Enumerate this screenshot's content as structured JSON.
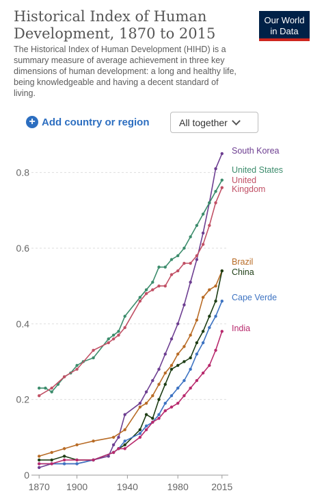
{
  "header": {
    "title": "Historical Index of Human Development, 1870 to 2015",
    "subtitle": "The Historical Index of Human Development (HIHD) is a summary measure of average achievement in three key dimensions of human development: a long and healthy life, being knowledgeable and having a decent standard of living.",
    "logo_line1": "Our World",
    "logo_line2": "in Data"
  },
  "controls": {
    "add_label": "Add country or region",
    "dropdown_value": "All together"
  },
  "colors": {
    "brand_navy": "#002147",
    "brand_red": "#ce261e",
    "accent_blue": "#2c6ec0"
  },
  "chart_data": {
    "type": "line",
    "title": "Historical Index of Human Development, 1870 to 2015",
    "xlabel": "",
    "ylabel": "",
    "xlim": [
      1865,
      2020
    ],
    "ylim": [
      0,
      0.87
    ],
    "x_ticks": [
      1870,
      1900,
      1940,
      1980,
      2015
    ],
    "y_ticks": [
      0,
      0.2,
      0.4,
      0.6,
      0.8
    ],
    "y_tick_labels": [
      "0",
      "0.2",
      "0.4",
      "0.6",
      "0.8"
    ],
    "grid": true,
    "legend": "inline-right",
    "series": [
      {
        "name": "South Korea",
        "color": "#6d3e91",
        "x": [
          1870,
          1880,
          1890,
          1900,
          1913,
          1925,
          1929,
          1933,
          1938,
          1950,
          1955,
          1960,
          1965,
          1970,
          1975,
          1980,
          1985,
          1990,
          1995,
          2000,
          2005,
          2010,
          2015
        ],
        "y": [
          0.02,
          0.03,
          0.03,
          0.03,
          0.04,
          0.05,
          0.08,
          0.1,
          0.16,
          0.19,
          0.22,
          0.25,
          0.28,
          0.32,
          0.36,
          0.4,
          0.45,
          0.51,
          0.57,
          0.64,
          0.72,
          0.81,
          0.85
        ]
      },
      {
        "name": "United States",
        "color": "#3c8c6c",
        "x": [
          1870,
          1875,
          1880,
          1885,
          1890,
          1895,
          1900,
          1905,
          1913,
          1925,
          1929,
          1933,
          1938,
          1950,
          1955,
          1960,
          1965,
          1970,
          1975,
          1980,
          1985,
          1990,
          1995,
          2000,
          2005,
          2010,
          2015
        ],
        "y": [
          0.23,
          0.23,
          0.22,
          0.24,
          0.26,
          0.27,
          0.29,
          0.3,
          0.31,
          0.36,
          0.37,
          0.38,
          0.42,
          0.47,
          0.49,
          0.51,
          0.55,
          0.55,
          0.57,
          0.58,
          0.6,
          0.63,
          0.66,
          0.69,
          0.72,
          0.75,
          0.78
        ]
      },
      {
        "name": "United Kingdom",
        "color": "#c15065",
        "x": [
          1870,
          1880,
          1890,
          1900,
          1913,
          1925,
          1929,
          1933,
          1938,
          1950,
          1955,
          1960,
          1965,
          1970,
          1975,
          1980,
          1985,
          1990,
          1995,
          2000,
          2005,
          2010,
          2015
        ],
        "y": [
          0.21,
          0.23,
          0.26,
          0.28,
          0.33,
          0.35,
          0.36,
          0.37,
          0.39,
          0.46,
          0.48,
          0.49,
          0.5,
          0.5,
          0.53,
          0.54,
          0.56,
          0.56,
          0.58,
          0.61,
          0.66,
          0.72,
          0.76
        ]
      },
      {
        "name": "Brazil",
        "color": "#b86b25",
        "x": [
          1870,
          1880,
          1890,
          1900,
          1913,
          1929,
          1938,
          1950,
          1955,
          1960,
          1965,
          1970,
          1975,
          1980,
          1985,
          1990,
          1995,
          2000,
          2005,
          2010,
          2015
        ],
        "y": [
          0.05,
          0.06,
          0.07,
          0.08,
          0.09,
          0.1,
          0.12,
          0.18,
          0.19,
          0.21,
          0.24,
          0.27,
          0.29,
          0.32,
          0.34,
          0.37,
          0.41,
          0.47,
          0.49,
          0.5,
          0.54
        ]
      },
      {
        "name": "China",
        "color": "#1d3d14",
        "x": [
          1870,
          1880,
          1890,
          1900,
          1913,
          1929,
          1933,
          1938,
          1950,
          1955,
          1960,
          1965,
          1970,
          1975,
          1980,
          1985,
          1990,
          1995,
          2000,
          2005,
          2010,
          2015
        ],
        "y": [
          0.04,
          0.04,
          0.05,
          0.04,
          0.04,
          0.06,
          0.07,
          0.08,
          0.12,
          0.16,
          0.15,
          0.2,
          0.24,
          0.28,
          0.29,
          0.3,
          0.31,
          0.35,
          0.38,
          0.42,
          0.46,
          0.54
        ]
      },
      {
        "name": "Cape Verde",
        "color": "#3d73c2",
        "x": [
          1870,
          1880,
          1890,
          1900,
          1913,
          1929,
          1933,
          1938,
          1950,
          1955,
          1960,
          1965,
          1970,
          1975,
          1980,
          1985,
          1990,
          1995,
          2000,
          2005,
          2010,
          2015
        ],
        "y": [
          0.03,
          0.03,
          0.03,
          0.03,
          0.04,
          0.06,
          0.07,
          0.09,
          0.11,
          0.13,
          0.14,
          0.16,
          0.19,
          0.21,
          0.23,
          0.25,
          0.28,
          0.32,
          0.35,
          0.39,
          0.42,
          0.46
        ]
      },
      {
        "name": "India",
        "color": "#b82a6d",
        "x": [
          1870,
          1880,
          1890,
          1900,
          1913,
          1929,
          1933,
          1938,
          1950,
          1955,
          1960,
          1965,
          1970,
          1975,
          1980,
          1985,
          1990,
          1995,
          2000,
          2005,
          2010,
          2015
        ],
        "y": [
          0.03,
          0.03,
          0.04,
          0.04,
          0.04,
          0.06,
          0.07,
          0.07,
          0.1,
          0.12,
          0.14,
          0.15,
          0.17,
          0.18,
          0.19,
          0.21,
          0.23,
          0.25,
          0.27,
          0.29,
          0.33,
          0.38
        ]
      }
    ],
    "series_labels": [
      "South Korea",
      "United States",
      "United",
      "Kingdom",
      "Brazil",
      "China",
      "Cape Verde",
      "India"
    ]
  }
}
